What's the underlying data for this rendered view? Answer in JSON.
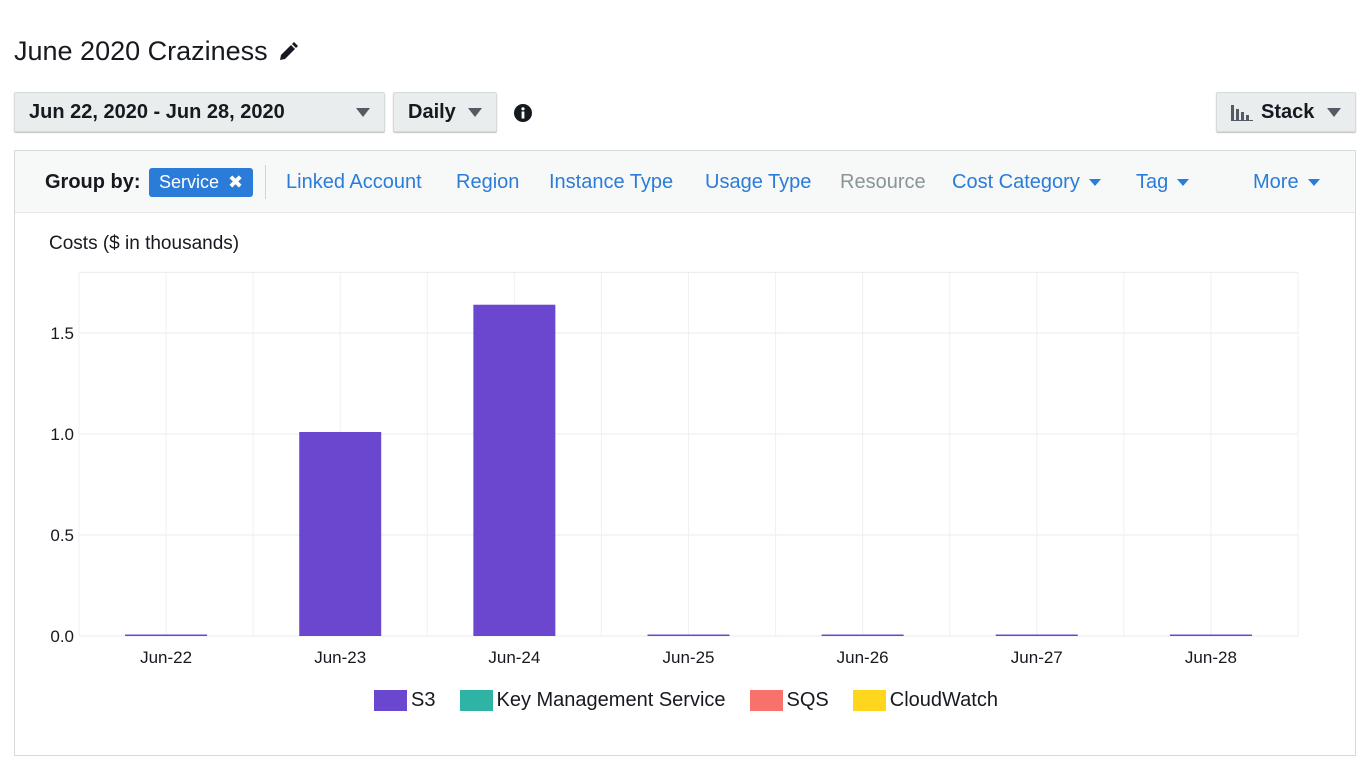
{
  "header": {
    "title": "June 2020 Craziness"
  },
  "toolbar": {
    "date_range": "Jun 22, 2020 - Jun 28, 2020",
    "granularity": "Daily",
    "chart_style": "Stack"
  },
  "group_by": {
    "label": "Group by:",
    "selected": "Service",
    "options": [
      {
        "label": "Linked Account",
        "enabled": true,
        "dropdown": false
      },
      {
        "label": "Region",
        "enabled": true,
        "dropdown": false
      },
      {
        "label": "Instance Type",
        "enabled": true,
        "dropdown": false
      },
      {
        "label": "Usage Type",
        "enabled": true,
        "dropdown": false
      },
      {
        "label": "Resource",
        "enabled": false,
        "dropdown": false
      },
      {
        "label": "Cost Category",
        "enabled": true,
        "dropdown": true
      },
      {
        "label": "Tag",
        "enabled": true,
        "dropdown": true
      },
      {
        "label": "More",
        "enabled": true,
        "dropdown": true
      }
    ]
  },
  "colors": {
    "accent": "#2b7cd9",
    "s3": "#6b46cf",
    "kms": "#2eb3a4",
    "sqs": "#f8716a",
    "cloudwatch": "#ffd61e"
  },
  "chart_data": {
    "type": "bar",
    "stacked": true,
    "ylabel": "Costs ($ in thousands)",
    "categories": [
      "Jun-22",
      "Jun-23",
      "Jun-24",
      "Jun-25",
      "Jun-26",
      "Jun-27",
      "Jun-28"
    ],
    "yticks": [
      "0.0",
      "0.5",
      "1.0",
      "1.5"
    ],
    "ylim": [
      0,
      1.8
    ],
    "grid": true,
    "legend_position": "bottom",
    "series": [
      {
        "name": "S3",
        "color": "#6b46cf",
        "values": [
          0.005,
          1.01,
          1.64,
          0.005,
          0.005,
          0.005,
          0.005
        ]
      },
      {
        "name": "Key Management Service",
        "color": "#2eb3a4",
        "values": [
          0,
          0,
          0,
          0,
          0,
          0,
          0
        ]
      },
      {
        "name": "SQS",
        "color": "#f8716a",
        "values": [
          0,
          0,
          0,
          0,
          0,
          0,
          0
        ]
      },
      {
        "name": "CloudWatch",
        "color": "#ffd61e",
        "values": [
          0,
          0,
          0,
          0,
          0,
          0,
          0
        ]
      }
    ]
  }
}
